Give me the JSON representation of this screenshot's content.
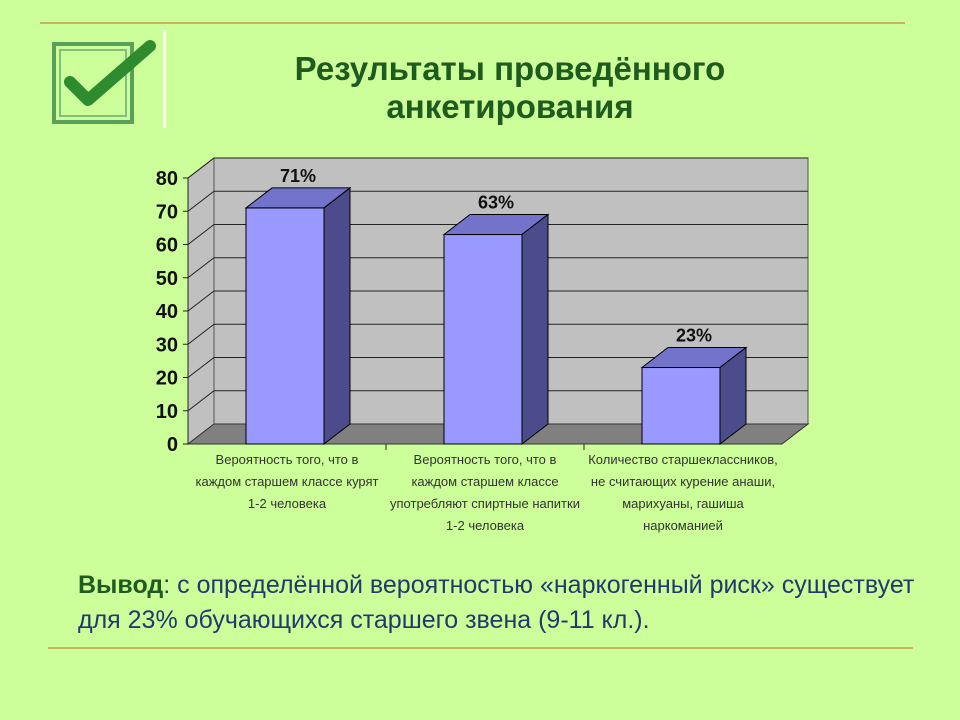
{
  "slide": {
    "title_line1": "Результаты проведённого",
    "title_line2": "анкетирования",
    "conclusion_lead": "Вывод",
    "conclusion_text": ": с определённой вероятностью «наркогенный риск» существует для 23% обучающихся старшего звена (9-11 кл.).",
    "logo_icon": "checkmark-icon"
  },
  "chart_data": {
    "type": "bar",
    "categories": [
      "Вероятность того, что в каждом старшем классе курят 1-2 человека",
      "Вероятность того, что в каждом старшем классе употребляют спиртные напитки 1-2 человека",
      "Количество старшеклассников, не считающих курение анаши, марихуаны, гашиша наркоманией"
    ],
    "values": [
      71,
      63,
      23
    ],
    "data_labels": [
      "71%",
      "63%",
      "23%"
    ],
    "yticks": [
      "0",
      "10",
      "20",
      "30",
      "40",
      "50",
      "60",
      "70",
      "80"
    ],
    "ylim": [
      0,
      80
    ],
    "grid": true,
    "three_d": true,
    "colors": {
      "bar_front": "#9999ff",
      "bar_side": "#4c4c8c",
      "bar_top": "#7373cc",
      "wall": "#c0c0c0",
      "floor": "#808080"
    }
  }
}
